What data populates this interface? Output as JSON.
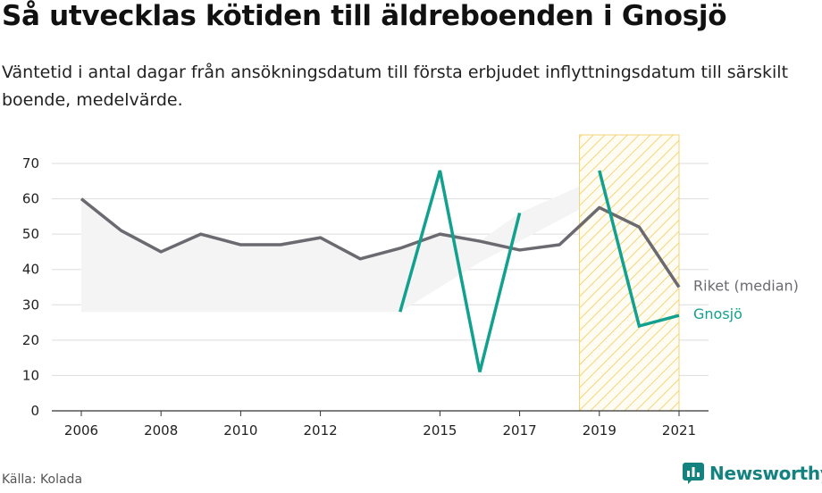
{
  "header": {
    "title": "Så utvecklas kötiden till äldreboenden i Gnosjö",
    "subtitle": "Väntetid i antal dagar från ansökningsdatum till första erbjudet inflyttningsdatum till särskilt boende, medelvärde."
  },
  "footer": {
    "source": "Källa: Kolada",
    "brand": "Newsworthy"
  },
  "colors": {
    "riket": "#6b6a70",
    "gnosjo": "#12a08f",
    "band": "#f4f4f4",
    "highlight_stroke": "#f3d47a",
    "brand": "#14837f"
  },
  "chart_data": {
    "type": "line",
    "title": "Så utvecklas kötiden till äldreboenden i Gnosjö",
    "ylim": [
      0,
      70
    ],
    "xlim": [
      2006,
      2021
    ],
    "yticks": [
      0,
      10,
      20,
      30,
      40,
      50,
      60,
      70
    ],
    "xticks": [
      2006,
      2008,
      2010,
      2012,
      2015,
      2017,
      2019,
      2021
    ],
    "grid": true,
    "highlight_range": [
      2018.5,
      2021
    ],
    "band": {
      "x": [
        2006,
        2007,
        2008,
        2009,
        2010,
        2011,
        2012,
        2013,
        2014,
        2015,
        2016,
        2017,
        2018,
        2019,
        2020,
        2021
      ],
      "lower": [
        28,
        28,
        28,
        28,
        28,
        28,
        28,
        28,
        28,
        35,
        42,
        48,
        54,
        60,
        60,
        60
      ],
      "upper": [
        60,
        51,
        45,
        50,
        47,
        47,
        49,
        43,
        46,
        50,
        48,
        56,
        61,
        66,
        60,
        60
      ]
    },
    "series": [
      {
        "name": "Riket (median)",
        "x": [
          2006,
          2007,
          2008,
          2009,
          2010,
          2011,
          2012,
          2013,
          2014,
          2015,
          2016,
          2017,
          2018,
          2019,
          2020,
          2021
        ],
        "values": [
          60,
          51,
          45,
          50,
          47,
          47,
          49,
          43,
          46,
          50,
          48,
          45.5,
          47,
          57.5,
          52,
          35
        ]
      },
      {
        "name": "Gnosjö",
        "x": [
          2014,
          2015,
          2016,
          2017,
          2019,
          2020,
          2021
        ],
        "values": [
          28,
          68,
          11,
          56,
          68,
          24,
          27
        ],
        "segments": [
          [
            2014,
            2015,
            2016,
            2017
          ],
          [
            2019,
            2020,
            2021
          ]
        ]
      }
    ]
  }
}
